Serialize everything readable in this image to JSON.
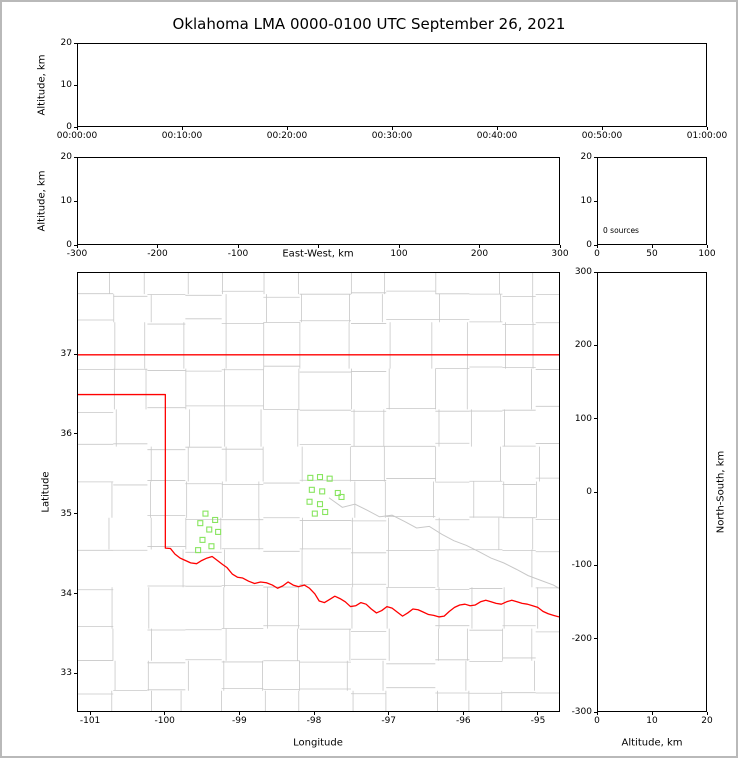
{
  "title": "Oklahoma LMA 0000-0100 UTC September 26, 2021",
  "colors": {
    "state_border": "#ff0000",
    "county_lines": "#c8c8c8",
    "stations": "#87e55e",
    "axis": "#000000",
    "background": "#ffffff"
  },
  "chart_data": {
    "type": "scatter",
    "subplots": {
      "time_height": {
        "position": "top",
        "ylabel": "Altitude, km",
        "x_ticks": {
          "range": [
            0,
            3600
          ],
          "values": [
            0,
            600,
            1200,
            1800,
            2400,
            3000,
            3600
          ],
          "labels": [
            "00:00:00",
            "00:10:00",
            "00:20:00",
            "00:30:00",
            "00:40:00",
            "00:50:00",
            "01:00:00"
          ]
        },
        "y_ticks": {
          "range": [
            0,
            20
          ],
          "values": [
            0,
            10,
            20
          ],
          "labels": [
            "0",
            "10",
            "20"
          ]
        },
        "points": []
      },
      "ew_height": {
        "position": "middle-left",
        "xlabel": "East-West, km",
        "ylabel": "Altitude, km",
        "x_ticks": {
          "range": [
            -300,
            300
          ],
          "values": [
            -300,
            -200,
            -100,
            0,
            100,
            200,
            300
          ],
          "labels": [
            "-300",
            "-200",
            "-100",
            "",
            "100",
            "200",
            "300"
          ]
        },
        "y_ticks": {
          "range": [
            0,
            20
          ],
          "values": [
            0,
            10,
            20
          ],
          "labels": [
            "0",
            "10",
            "20"
          ]
        },
        "points": []
      },
      "height_hist": {
        "position": "middle-right",
        "annotation": "0 sources",
        "x_ticks": {
          "range": [
            0,
            100
          ],
          "values": [
            0,
            50,
            100
          ],
          "labels": [
            "0",
            "50",
            "100"
          ]
        },
        "y_ticks": {
          "range": [
            0,
            20
          ],
          "values": [
            0,
            10,
            20
          ],
          "labels": [
            "0",
            "10",
            "20"
          ]
        },
        "points": []
      },
      "plan_view": {
        "position": "bottom-left",
        "xlabel": "Longitude",
        "ylabel": "Latitude",
        "x_ticks": {
          "range": [
            -101.175,
            -94.705
          ],
          "values": [
            -101,
            -100,
            -99,
            -98,
            -97,
            -96,
            -95
          ],
          "labels": [
            "-101",
            "-100",
            "-99",
            "-98",
            "-97",
            "-96",
            "-95"
          ]
        },
        "y_ticks": {
          "range": [
            32.515,
            38.03
          ],
          "values": [
            33,
            34,
            35,
            36,
            37
          ],
          "labels": [
            "33",
            "34",
            "35",
            "36",
            "37"
          ]
        },
        "points": [],
        "stations": [
          [
            -98.05,
            35.45
          ],
          [
            -97.92,
            35.46
          ],
          [
            -97.79,
            35.44
          ],
          [
            -98.03,
            35.3
          ],
          [
            -97.89,
            35.28
          ],
          [
            -97.68,
            35.26
          ],
          [
            -98.06,
            35.15
          ],
          [
            -97.92,
            35.12
          ],
          [
            -97.99,
            35.0
          ],
          [
            -97.85,
            35.02
          ],
          [
            -97.63,
            35.21
          ],
          [
            -99.46,
            35.0
          ],
          [
            -99.33,
            34.92
          ],
          [
            -99.53,
            34.88
          ],
          [
            -99.41,
            34.8
          ],
          [
            -99.29,
            34.77
          ],
          [
            -99.5,
            34.67
          ],
          [
            -99.38,
            34.59
          ],
          [
            -99.56,
            34.54
          ]
        ],
        "state_border": {
          "north": [
            [
              -101.175,
              37.0
            ],
            [
              -94.705,
              37.0
            ]
          ],
          "west_and_south": [
            [
              -101.175,
              36.5
            ],
            [
              -100.0,
              36.5
            ],
            [
              -100.0,
              34.565
            ],
            [
              -99.93,
              34.56
            ],
            [
              -99.87,
              34.49
            ],
            [
              -99.8,
              34.44
            ],
            [
              -99.73,
              34.41
            ],
            [
              -99.66,
              34.38
            ],
            [
              -99.58,
              34.37
            ],
            [
              -99.51,
              34.41
            ],
            [
              -99.44,
              34.44
            ],
            [
              -99.37,
              34.46
            ],
            [
              -99.3,
              34.41
            ],
            [
              -99.23,
              34.36
            ],
            [
              -99.17,
              34.32
            ],
            [
              -99.1,
              34.24
            ],
            [
              -99.03,
              34.2
            ],
            [
              -98.96,
              34.19
            ],
            [
              -98.88,
              34.15
            ],
            [
              -98.8,
              34.12
            ],
            [
              -98.72,
              34.14
            ],
            [
              -98.64,
              34.13
            ],
            [
              -98.56,
              34.1
            ],
            [
              -98.49,
              34.06
            ],
            [
              -98.42,
              34.09
            ],
            [
              -98.35,
              34.14
            ],
            [
              -98.28,
              34.1
            ],
            [
              -98.21,
              34.08
            ],
            [
              -98.13,
              34.1
            ],
            [
              -98.06,
              34.06
            ],
            [
              -97.99,
              33.99
            ],
            [
              -97.93,
              33.9
            ],
            [
              -97.86,
              33.88
            ],
            [
              -97.79,
              33.92
            ],
            [
              -97.72,
              33.96
            ],
            [
              -97.65,
              33.93
            ],
            [
              -97.58,
              33.89
            ],
            [
              -97.51,
              33.83
            ],
            [
              -97.44,
              33.84
            ],
            [
              -97.37,
              33.88
            ],
            [
              -97.3,
              33.86
            ],
            [
              -97.23,
              33.8
            ],
            [
              -97.16,
              33.75
            ],
            [
              -97.09,
              33.78
            ],
            [
              -97.02,
              33.83
            ],
            [
              -96.95,
              33.81
            ],
            [
              -96.88,
              33.76
            ],
            [
              -96.81,
              33.71
            ],
            [
              -96.74,
              33.75
            ],
            [
              -96.67,
              33.8
            ],
            [
              -96.6,
              33.79
            ],
            [
              -96.53,
              33.76
            ],
            [
              -96.46,
              33.73
            ],
            [
              -96.39,
              33.72
            ],
            [
              -96.32,
              33.7
            ],
            [
              -96.25,
              33.71
            ],
            [
              -96.18,
              33.77
            ],
            [
              -96.11,
              33.82
            ],
            [
              -96.04,
              33.85
            ],
            [
              -95.97,
              33.86
            ],
            [
              -95.9,
              33.84
            ],
            [
              -95.83,
              33.85
            ],
            [
              -95.76,
              33.89
            ],
            [
              -95.69,
              33.91
            ],
            [
              -95.62,
              33.89
            ],
            [
              -95.55,
              33.87
            ],
            [
              -95.48,
              33.86
            ],
            [
              -95.41,
              33.89
            ],
            [
              -95.34,
              33.91
            ],
            [
              -95.27,
              33.89
            ],
            [
              -95.2,
              33.87
            ],
            [
              -95.13,
              33.86
            ],
            [
              -95.06,
              33.84
            ],
            [
              -94.99,
              33.82
            ],
            [
              -94.92,
              33.77
            ],
            [
              -94.85,
              33.74
            ],
            [
              -94.78,
              33.72
            ],
            [
              -94.705,
              33.7
            ]
          ]
        },
        "river": [
          [
            -97.8,
            35.2
          ],
          [
            -97.62,
            35.08
          ],
          [
            -97.45,
            35.12
          ],
          [
            -97.28,
            35.04
          ],
          [
            -97.12,
            34.96
          ],
          [
            -96.95,
            34.98
          ],
          [
            -96.78,
            34.9
          ],
          [
            -96.62,
            34.82
          ],
          [
            -96.45,
            34.84
          ],
          [
            -96.28,
            34.74
          ],
          [
            -96.12,
            34.66
          ],
          [
            -95.95,
            34.6
          ],
          [
            -95.78,
            34.52
          ],
          [
            -95.62,
            34.44
          ],
          [
            -95.45,
            34.38
          ],
          [
            -95.28,
            34.3
          ],
          [
            -95.12,
            34.22
          ],
          [
            -94.95,
            34.16
          ],
          [
            -94.78,
            34.1
          ],
          [
            -94.705,
            34.06
          ]
        ]
      },
      "ns_height": {
        "position": "bottom-right",
        "xlabel": "Altitude, km",
        "ylabel": "North-South, km",
        "x_ticks": {
          "range": [
            0,
            20
          ],
          "values": [
            0,
            10,
            20
          ],
          "labels": [
            "0",
            "10",
            "20"
          ]
        },
        "y_ticks": {
          "range": [
            -300,
            300
          ],
          "values": [
            -300,
            -200,
            -100,
            0,
            100,
            200,
            300
          ],
          "labels": [
            "-300",
            "-200",
            "-100",
            "0",
            "100",
            "200",
            "300"
          ]
        },
        "points": []
      }
    }
  }
}
